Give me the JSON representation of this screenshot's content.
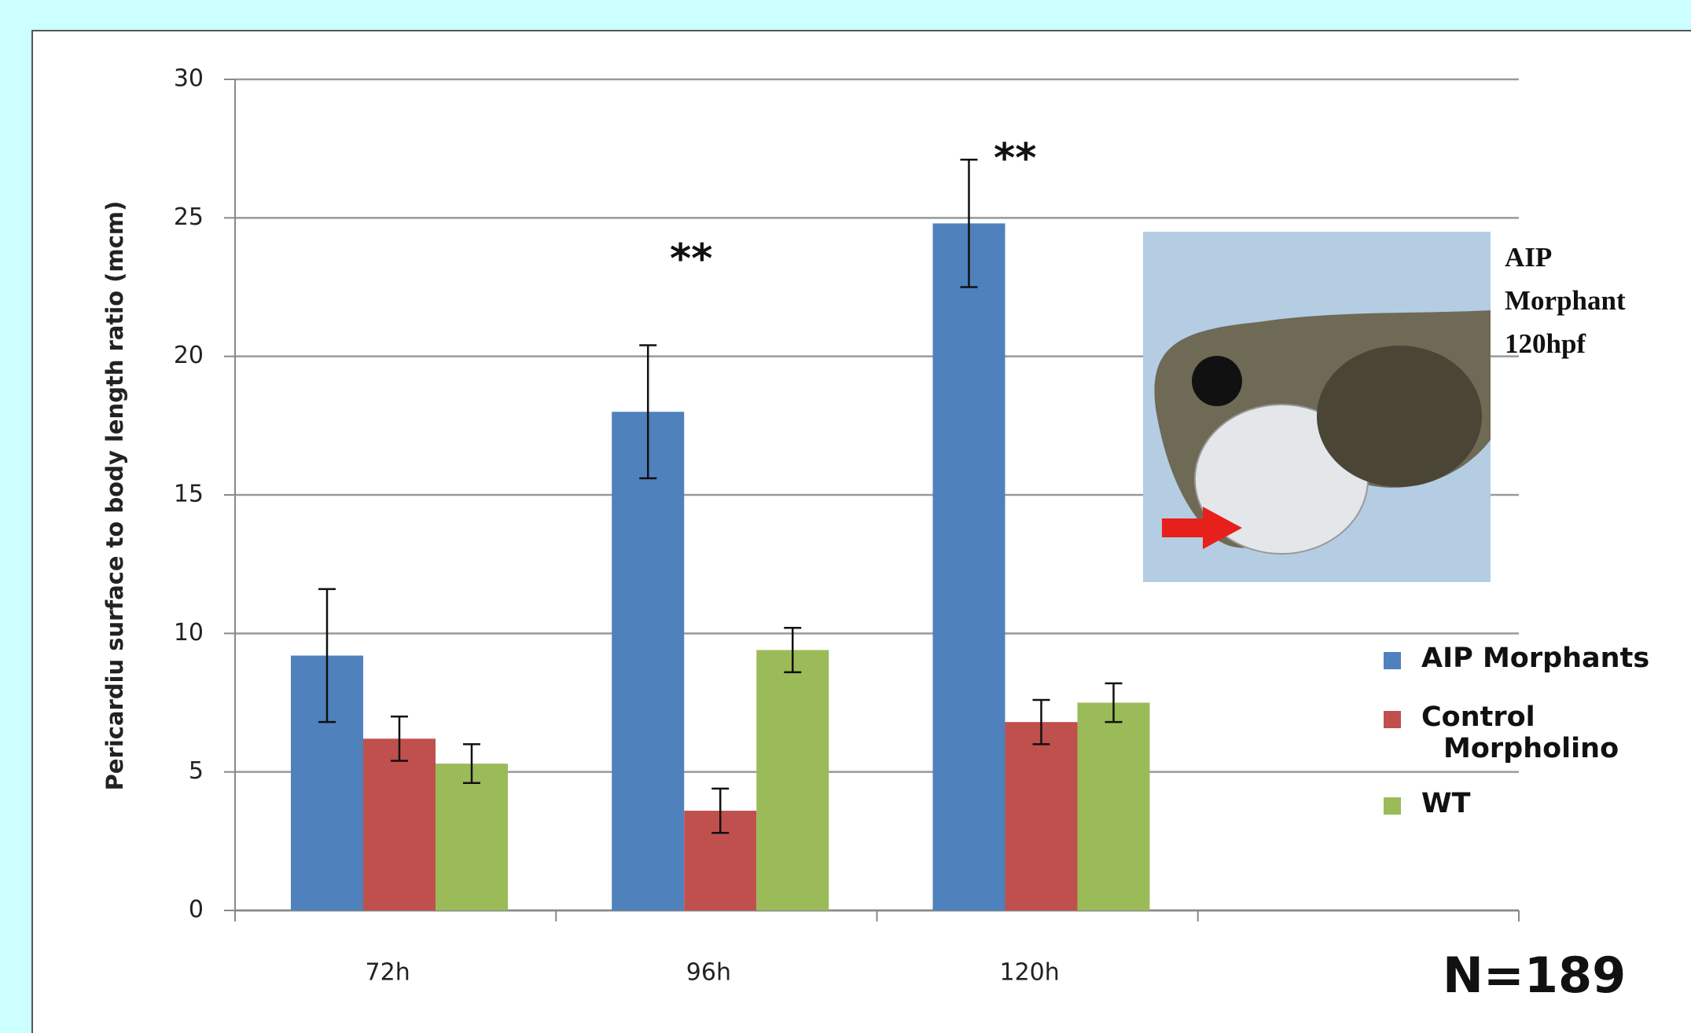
{
  "chart_data": {
    "type": "bar",
    "ylabel": "Pericardiu surface  to body length ratio (mcm)",
    "categories": [
      "72h",
      "96h",
      "120h",
      null
    ],
    "series": [
      {
        "name": "AIP Morphants",
        "color": "#4f81bd",
        "values": [
          9.2,
          18.0,
          24.8,
          null
        ],
        "errors": [
          2.4,
          2.4,
          2.3,
          null
        ]
      },
      {
        "name": "Control Morpholino",
        "color": "#c0504d",
        "values": [
          6.2,
          3.6,
          6.8,
          null
        ],
        "errors": [
          0.8,
          0.8,
          0.8,
          null
        ]
      },
      {
        "name": "WT",
        "color": "#9bbb59",
        "values": [
          5.3,
          9.4,
          7.5,
          null
        ],
        "errors": [
          0.7,
          0.8,
          0.7,
          null
        ]
      }
    ],
    "ylim": [
      0,
      30
    ],
    "yticks": [
      0,
      5,
      10,
      15,
      20,
      25,
      30
    ],
    "grid": true,
    "significance": [
      "**",
      "**"
    ],
    "note": "N=189",
    "inset_caption": "AIP Morphant 120hpf"
  }
}
